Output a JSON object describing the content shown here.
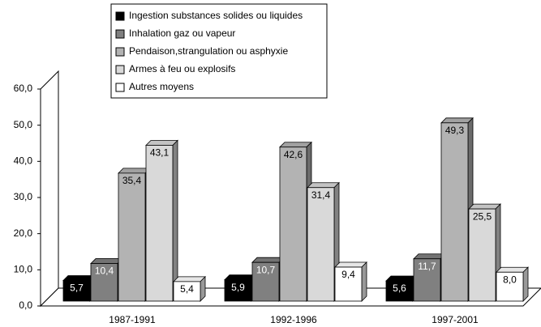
{
  "chart_data": {
    "type": "bar3d",
    "categories": [
      "1987-1991",
      "1992-1996",
      "1997-2001"
    ],
    "series": [
      {
        "name": "Ingestion substances solides ou liquides",
        "color": "#000000",
        "values": [
          5.7,
          5.9,
          5.6
        ],
        "value_labels": [
          "5,7",
          "5,9",
          "5,6"
        ]
      },
      {
        "name": "Inhalation gaz ou vapeur",
        "color": "#808080",
        "values": [
          10.4,
          10.7,
          11.7
        ],
        "value_labels": [
          "10,4",
          "10,7",
          "11,7"
        ]
      },
      {
        "name": "Pendaison,strangulation ou asphyxie",
        "color": "#b3b3b3",
        "values": [
          35.4,
          42.6,
          49.3
        ],
        "value_labels": [
          "35,4",
          "42,6",
          "49,3"
        ]
      },
      {
        "name": "Armes à feu ou explosifs",
        "color": "#d9d9d9",
        "values": [
          43.1,
          31.4,
          25.5
        ],
        "value_labels": [
          "43,1",
          "31,4",
          "25,5"
        ]
      },
      {
        "name": "Autres moyens",
        "color": "#ffffff",
        "values": [
          5.4,
          9.4,
          8.0
        ],
        "value_labels": [
          "5,4",
          "9,4",
          "8,0"
        ]
      }
    ],
    "ylim": [
      0,
      60
    ],
    "yticks": [
      {
        "value": 0,
        "label": "0,0"
      },
      {
        "value": 10,
        "label": "10,0"
      },
      {
        "value": 20,
        "label": "20,0"
      },
      {
        "value": 30,
        "label": "30,0"
      },
      {
        "value": 40,
        "label": "40,0"
      },
      {
        "value": 50,
        "label": "50,0"
      },
      {
        "value": 60,
        "label": "60,0"
      }
    ],
    "legend": "top"
  }
}
